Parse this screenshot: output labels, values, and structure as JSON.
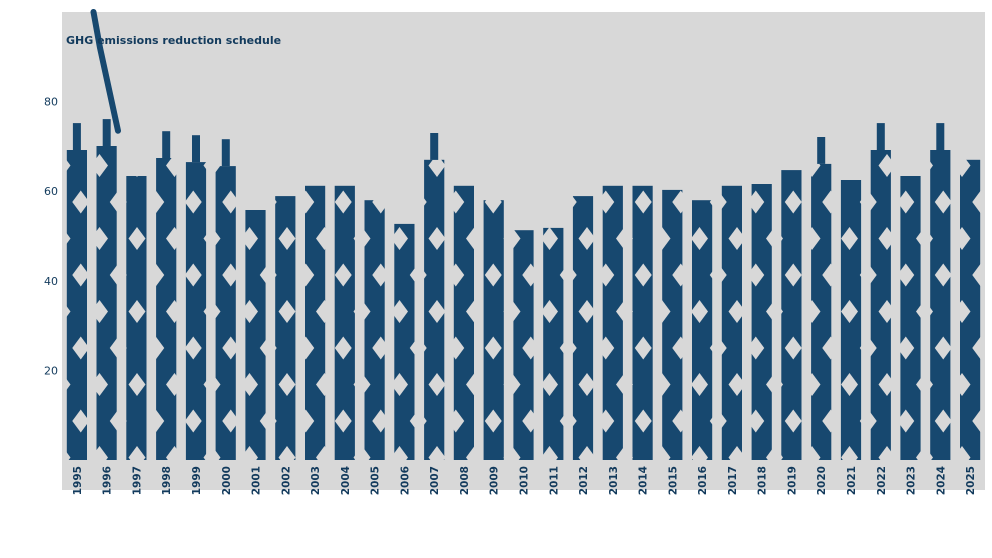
{
  "chart": {
    "panel_color": "#d8d8d8",
    "bar_color": "#17486f",
    "diamond_color": "#d8d8d8",
    "text_color": "#123a5c"
  },
  "chart_data": {
    "type": "bar",
    "title": "GHG emissions reduction schedule",
    "xlabel": "",
    "ylabel": "",
    "ylim": [
      0,
      100
    ],
    "yticks": [
      20,
      40,
      60,
      80
    ],
    "grid": false,
    "legend_position": "top-left",
    "hatch": "diamond",
    "categories": [
      "1995",
      "1996",
      "1997",
      "1998",
      "1999",
      "2000",
      "2001",
      "2002",
      "2003",
      "2004",
      "2005",
      "2006",
      "2007",
      "2008",
      "2009",
      "2010",
      "2011",
      "2012",
      "2013",
      "2014",
      "2015",
      "2016",
      "2017",
      "2018",
      "2019",
      "2020",
      "2021",
      "2022",
      "2023",
      "2024",
      "2025"
    ],
    "values": [
      69.2,
      70.1,
      63.4,
      67.4,
      66.5,
      65.6,
      55.8,
      58.9,
      61.2,
      61.2,
      58.0,
      52.7,
      67.0,
      61.2,
      58.0,
      51.3,
      51.8,
      58.9,
      61.2,
      61.2,
      60.3,
      58.0,
      61.2,
      61.6,
      64.7,
      66.1,
      62.5,
      69.2,
      63.4,
      69.2,
      67.0
    ],
    "errors": [
      6,
      6,
      0,
      6,
      6,
      6,
      0,
      0,
      0,
      0,
      0,
      0,
      6,
      0,
      0,
      0,
      0,
      0,
      0,
      0,
      0,
      0,
      0,
      0,
      0,
      6,
      0,
      6,
      0,
      6,
      0
    ],
    "leadline": {
      "x": [
        93.5,
        100,
        118
      ],
      "y": [
        100,
        92,
        73.5
      ]
    }
  }
}
